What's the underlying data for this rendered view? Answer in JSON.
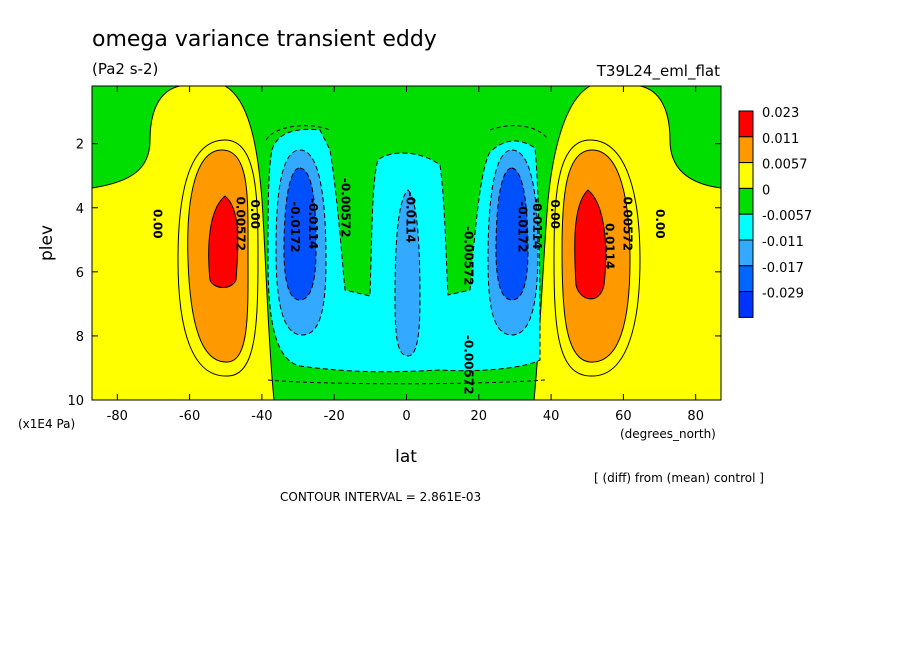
{
  "chart_data": {
    "type": "contour",
    "title": "omega variance transient eddy",
    "units": "(Pa2 s-2)",
    "experiment": "T39L24_eml_flat",
    "xlabel": "lat",
    "x_units": "(degrees_north)",
    "ylabel": "plev",
    "y_units": "(x1E4 Pa)",
    "xlim": [
      -87,
      87
    ],
    "ylim": [
      10,
      0.2
    ],
    "x_ticks": [
      "-80",
      "-60",
      "-40",
      "-20",
      "0",
      "20",
      "40",
      "60",
      "80"
    ],
    "y_ticks": [
      "2",
      "4",
      "6",
      "8",
      "10"
    ],
    "contour_interval": "CONTOUR INTERVAL = 2.861E-03",
    "note": "[ (diff) from (mean) control ]",
    "legend": {
      "levels": [
        "0.023",
        "0.011",
        "0.0057",
        "0",
        "-0.0057",
        "-0.011",
        "-0.017",
        "-0.029"
      ],
      "colors": [
        "#ff0000",
        "#ff9900",
        "#ffff00",
        "#00dd00",
        "#00ffff",
        "#33aaff",
        "#0066ff",
        "#0033ff"
      ]
    },
    "contour_labels": [
      {
        "text": "0.00",
        "lat": -70,
        "p": 4.5
      },
      {
        "text": "0.00572",
        "lat": -47,
        "p": 4.5
      },
      {
        "text": "0.00",
        "lat": -43,
        "p": 4.2
      },
      {
        "text": "-0.0172",
        "lat": -32,
        "p": 4.6
      },
      {
        "text": "-0.0114",
        "lat": -27,
        "p": 4.5
      },
      {
        "text": "-0.00572",
        "lat": -18,
        "p": 4.0
      },
      {
        "text": "-0.0114",
        "lat": 0,
        "p": 4.3
      },
      {
        "text": "-0.00572",
        "lat": 16,
        "p": 5.5
      },
      {
        "text": "-0.00572",
        "lat": 16,
        "p": 8.9
      },
      {
        "text": "0.00",
        "lat": 40,
        "p": 4.2
      },
      {
        "text": "-0.0114",
        "lat": 35,
        "p": 4.5
      },
      {
        "text": "-0.0172",
        "lat": 31,
        "p": 4.6
      },
      {
        "text": "0.00572",
        "lat": 60,
        "p": 4.5
      },
      {
        "text": "0.0114",
        "lat": 55,
        "p": 5.2
      },
      {
        "text": "0.00",
        "lat": 69,
        "p": 4.5
      }
    ]
  }
}
